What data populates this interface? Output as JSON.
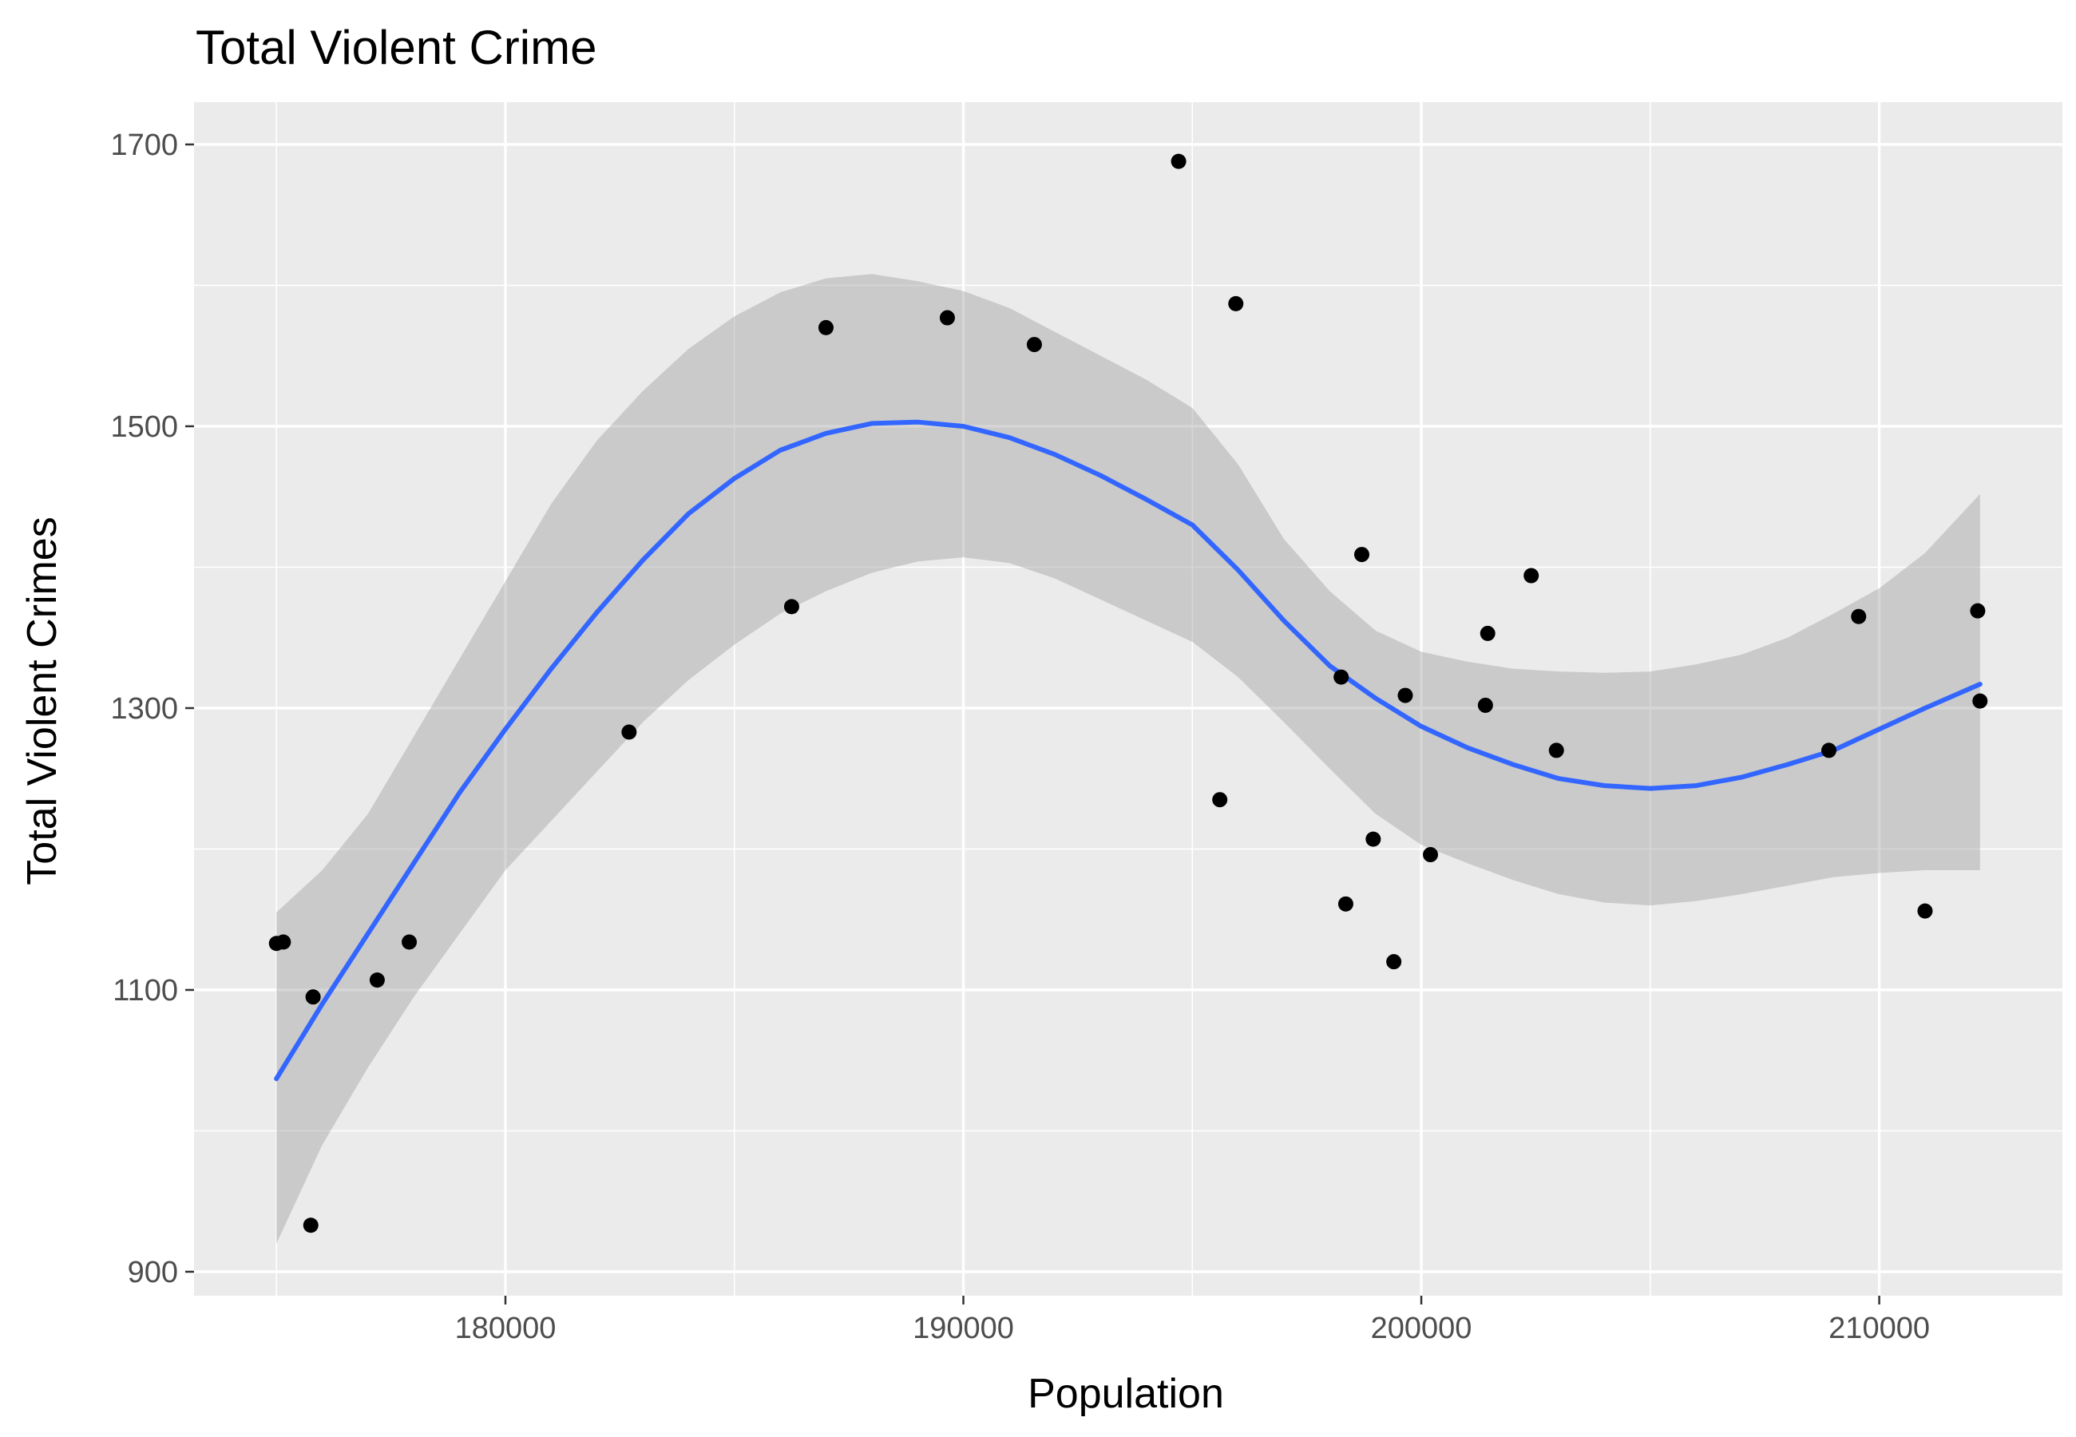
{
  "chart_data": {
    "type": "scatter",
    "title": "Total Violent Crime",
    "xlabel": "Population",
    "ylabel": "Total Violent Crimes",
    "xlim": [
      173200,
      214000
    ],
    "ylim": [
      883,
      1730
    ],
    "x_ticks": [
      180000,
      190000,
      200000,
      210000
    ],
    "x_tick_labels": [
      "180000",
      "190000",
      "200000",
      "210000"
    ],
    "x_minor_ticks": [
      175000,
      185000,
      195000,
      205000
    ],
    "y_ticks": [
      900,
      1100,
      1300,
      1500,
      1700
    ],
    "y_tick_labels": [
      "900",
      "1100",
      "1300",
      "1500",
      "1700"
    ],
    "y_minor_ticks": [
      1000,
      1200,
      1400,
      1600
    ],
    "grid": true,
    "legend": "none",
    "colors": {
      "panel_background": "#ebebeb",
      "grid": "#ffffff",
      "points": "#000000",
      "smooth_line": "#3366ff",
      "confidence_band": "#999999"
    },
    "points": [
      {
        "x": 175000,
        "y": 1133
      },
      {
        "x": 175150,
        "y": 1134
      },
      {
        "x": 175750,
        "y": 933
      },
      {
        "x": 175800,
        "y": 1095
      },
      {
        "x": 177200,
        "y": 1107
      },
      {
        "x": 177900,
        "y": 1134
      },
      {
        "x": 182700,
        "y": 1283
      },
      {
        "x": 186250,
        "y": 1372
      },
      {
        "x": 187000,
        "y": 1570
      },
      {
        "x": 189650,
        "y": 1577
      },
      {
        "x": 191550,
        "y": 1558
      },
      {
        "x": 194700,
        "y": 1688
      },
      {
        "x": 195600,
        "y": 1235
      },
      {
        "x": 195950,
        "y": 1587
      },
      {
        "x": 198250,
        "y": 1322
      },
      {
        "x": 198350,
        "y": 1161
      },
      {
        "x": 198700,
        "y": 1409
      },
      {
        "x": 198950,
        "y": 1207
      },
      {
        "x": 199400,
        "y": 1120
      },
      {
        "x": 199650,
        "y": 1309
      },
      {
        "x": 200200,
        "y": 1196
      },
      {
        "x": 201400,
        "y": 1302
      },
      {
        "x": 201450,
        "y": 1353
      },
      {
        "x": 202400,
        "y": 1394
      },
      {
        "x": 202950,
        "y": 1270
      },
      {
        "x": 208900,
        "y": 1270
      },
      {
        "x": 209550,
        "y": 1365
      },
      {
        "x": 211000,
        "y": 1156
      },
      {
        "x": 212150,
        "y": 1369
      },
      {
        "x": 212200,
        "y": 1305
      }
    ],
    "smooth": [
      {
        "x": 175000,
        "y": 1037,
        "lo": 920,
        "hi": 1155
      },
      {
        "x": 176000,
        "y": 1090,
        "lo": 990,
        "hi": 1185
      },
      {
        "x": 177000,
        "y": 1140,
        "lo": 1045,
        "hi": 1225
      },
      {
        "x": 178000,
        "y": 1190,
        "lo": 1095,
        "hi": 1280
      },
      {
        "x": 179000,
        "y": 1240,
        "lo": 1140,
        "hi": 1335
      },
      {
        "x": 180000,
        "y": 1285,
        "lo": 1185,
        "hi": 1390
      },
      {
        "x": 181000,
        "y": 1328,
        "lo": 1220,
        "hi": 1445
      },
      {
        "x": 182000,
        "y": 1368,
        "lo": 1255,
        "hi": 1490
      },
      {
        "x": 183000,
        "y": 1405,
        "lo": 1290,
        "hi": 1525
      },
      {
        "x": 184000,
        "y": 1438,
        "lo": 1320,
        "hi": 1555
      },
      {
        "x": 185000,
        "y": 1463,
        "lo": 1345,
        "hi": 1578
      },
      {
        "x": 186000,
        "y": 1483,
        "lo": 1367,
        "hi": 1595
      },
      {
        "x": 187000,
        "y": 1495,
        "lo": 1383,
        "hi": 1605
      },
      {
        "x": 188000,
        "y": 1502,
        "lo": 1396,
        "hi": 1608
      },
      {
        "x": 189000,
        "y": 1503,
        "lo": 1404,
        "hi": 1603
      },
      {
        "x": 190000,
        "y": 1500,
        "lo": 1407,
        "hi": 1596
      },
      {
        "x": 191000,
        "y": 1492,
        "lo": 1403,
        "hi": 1584
      },
      {
        "x": 192000,
        "y": 1480,
        "lo": 1392,
        "hi": 1567
      },
      {
        "x": 193000,
        "y": 1465,
        "lo": 1377,
        "hi": 1550
      },
      {
        "x": 194000,
        "y": 1448,
        "lo": 1362,
        "hi": 1533
      },
      {
        "x": 195000,
        "y": 1430,
        "lo": 1347,
        "hi": 1513
      },
      {
        "x": 196000,
        "y": 1398,
        "lo": 1322,
        "hi": 1473
      },
      {
        "x": 197000,
        "y": 1362,
        "lo": 1290,
        "hi": 1420
      },
      {
        "x": 198000,
        "y": 1330,
        "lo": 1257,
        "hi": 1383
      },
      {
        "x": 199000,
        "y": 1307,
        "lo": 1225,
        "hi": 1355
      },
      {
        "x": 200000,
        "y": 1287,
        "lo": 1203,
        "hi": 1340
      },
      {
        "x": 201000,
        "y": 1272,
        "lo": 1190,
        "hi": 1333
      },
      {
        "x": 202000,
        "y": 1260,
        "lo": 1178,
        "hi": 1328
      },
      {
        "x": 203000,
        "y": 1250,
        "lo": 1168,
        "hi": 1326
      },
      {
        "x": 204000,
        "y": 1245,
        "lo": 1162,
        "hi": 1325
      },
      {
        "x": 205000,
        "y": 1243,
        "lo": 1160,
        "hi": 1326
      },
      {
        "x": 206000,
        "y": 1245,
        "lo": 1163,
        "hi": 1331
      },
      {
        "x": 207000,
        "y": 1251,
        "lo": 1168,
        "hi": 1338
      },
      {
        "x": 208000,
        "y": 1260,
        "lo": 1174,
        "hi": 1350
      },
      {
        "x": 209000,
        "y": 1270,
        "lo": 1180,
        "hi": 1367
      },
      {
        "x": 210000,
        "y": 1285,
        "lo": 1183,
        "hi": 1385
      },
      {
        "x": 211000,
        "y": 1300,
        "lo": 1185,
        "hi": 1410
      },
      {
        "x": 212200,
        "y": 1317,
        "lo": 1185,
        "hi": 1452
      }
    ]
  }
}
